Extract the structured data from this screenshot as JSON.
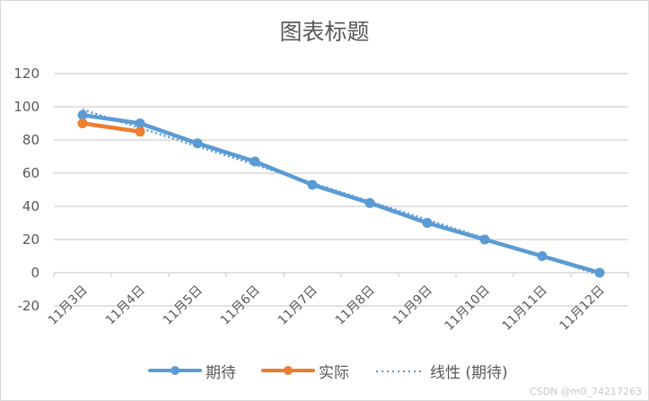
{
  "chart_data": {
    "type": "line",
    "title": "图表标题",
    "xlabel": "",
    "ylabel": "",
    "categories": [
      "11月3日",
      "11月4日",
      "11月5日",
      "11月6日",
      "11月7日",
      "11月8日",
      "11月9日",
      "11月10日",
      "11月11日",
      "11月12日"
    ],
    "series": [
      {
        "name": "期待",
        "color": "#5b9bd5",
        "values": [
          95,
          90,
          78,
          67,
          53,
          42,
          30,
          20,
          10,
          0
        ],
        "marker": "circle"
      },
      {
        "name": "实际",
        "color": "#ed7d31",
        "values": [
          90,
          85,
          null,
          null,
          null,
          null,
          null,
          null,
          null,
          null
        ],
        "marker": "circle"
      }
    ],
    "trendline": {
      "name": "线性 (期待)",
      "type": "linear",
      "of_series": "期待",
      "color": "#5b9bd5",
      "style": "dotted"
    },
    "ylim": [
      -20,
      120
    ],
    "yticks": [
      -20,
      0,
      20,
      40,
      60,
      80,
      100,
      120
    ],
    "grid": true,
    "legend_position": "bottom"
  },
  "legend": {
    "items": [
      {
        "label": "期待",
        "color": "#5b9bd5",
        "style": "line-marker"
      },
      {
        "label": "实际",
        "color": "#ed7d31",
        "style": "line-marker"
      },
      {
        "label": "线性 (期待)",
        "color": "#5b9bd5",
        "style": "dotted"
      }
    ]
  },
  "watermark": "CSDN @m0_74217263",
  "colors": {
    "gridline": "#d9d9d9",
    "axis_text": "#595959",
    "border": "#d9d9d9"
  }
}
